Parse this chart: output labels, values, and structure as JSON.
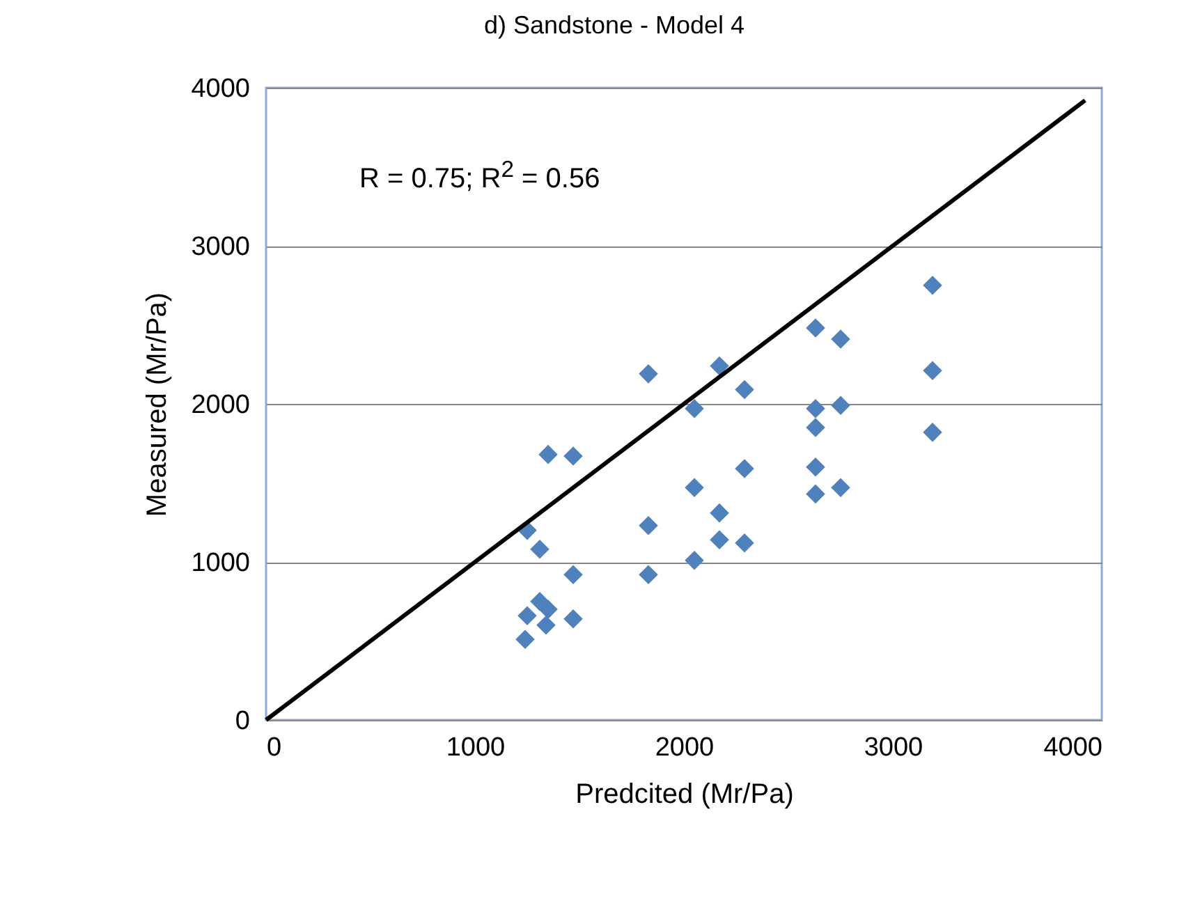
{
  "chart_data": {
    "type": "scatter",
    "title": "d) Sandstone - Model 4",
    "xlabel": "Predcited (Mr/Pa)",
    "ylabel": "Measured  (Mr/Pa)",
    "annotations": [
      "R = 0.75; R$^{2}$ = 0.56"
    ],
    "xlim": [
      0,
      4000
    ],
    "ylim": [
      0,
      4000
    ],
    "xticks": [
      0,
      1000,
      2000,
      3000,
      4000
    ],
    "yticks": [
      0,
      1000,
      2000,
      3000,
      4000
    ],
    "grid": "y",
    "series": [
      {
        "marker": "diamond",
        "color": "#4f81bd",
        "x": [
          1250,
          1310,
          1350,
          1340,
          1240,
          1470,
          1310,
          1250,
          1470,
          1350,
          1470,
          1830,
          1830,
          1830,
          2050,
          2050,
          2050,
          2170,
          2170,
          2170,
          2290,
          2630,
          2750,
          3190,
          3190,
          3190,
          2630,
          2630,
          2750,
          2290,
          2630,
          2630,
          2750,
          2290
        ],
        "values": [
          660,
          750,
          700,
          600,
          510,
          640,
          1080,
          1200,
          920,
          1680,
          1670,
          2190,
          1230,
          920,
          1970,
          1470,
          1010,
          1310,
          1140,
          2240,
          2090,
          2480,
          2410,
          2750,
          2210,
          1820,
          1970,
          1850,
          1990,
          1590,
          1600,
          1430,
          1470,
          1120
        ]
      },
      {
        "type": "line",
        "marker": "none",
        "color": "#000000",
        "x": [
          0,
          3920
        ],
        "values": [
          0,
          3920
        ]
      }
    ]
  }
}
